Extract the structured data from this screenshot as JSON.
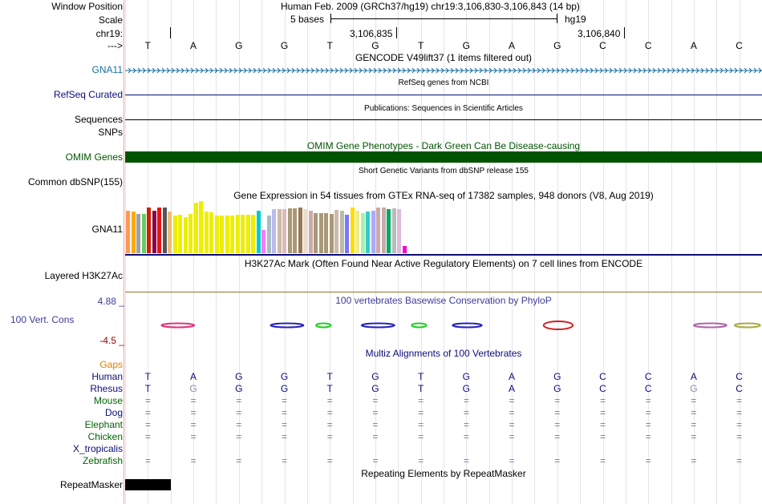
{
  "header": {
    "window_position_label": "Window Position",
    "title": "Human Feb. 2009 (GRCh37/hg19)   chr19:3,106,830-3,106,843 (14 bp)",
    "scale_label": "Scale",
    "scale_text": "5 bases",
    "scale_assembly": "hg19",
    "chrom_label": "chr19:",
    "coord1": "3,106,835",
    "coord2": "3,106,840",
    "strand_label": "--->"
  },
  "bases": [
    "T",
    "A",
    "G",
    "G",
    "T",
    "G",
    "T",
    "G",
    "A",
    "G",
    "C",
    "C",
    "A",
    "C"
  ],
  "tracks": {
    "gencode": {
      "title": "GENCODE V49lift37 (1 items filtered out)",
      "label": "GNA11",
      "color": "#1a6fa0"
    },
    "refseq": {
      "title": "RefSeq genes from NCBI",
      "label": "RefSeq Curated",
      "color": "#0c0c78"
    },
    "publications": {
      "title": "Publications: Sequences in Scientific Articles",
      "label1": "Sequences",
      "label2": "SNPs"
    },
    "omim": {
      "title": "OMIM Gene Phenotypes - Dark Green Can Be Disease-causing",
      "label": "OMIM Genes",
      "color": "#005400"
    },
    "dbsnp": {
      "title": "Short Genetic Variants from dbSNP release 155",
      "label": "Common dbSNP(155)"
    },
    "gtex": {
      "title": "Gene Expression in 54 tissues from GTEx RNA-seq of 17382 samples, 948 donors (V8, Aug 2019)",
      "label": "GNA11"
    },
    "h3k27ac": {
      "title": "H3K27Ac Mark (Often Found Near Active Regulatory Elements) on 7 cell lines from ENCODE",
      "label": "Layered H3K27Ac"
    },
    "phylop": {
      "title": "100 vertebrates Basewise Conservation by PhyloP",
      "label": "100 Vert. Cons",
      "max": "4.88 _",
      "min": "-4.5 _",
      "color": "#3c3c9a"
    },
    "multiz": {
      "title": "Multiz Alignments of 100 Vertebrates",
      "gaps_label": "Gaps"
    },
    "repeatmasker": {
      "title": "Repeating Elements by RepeatMasker",
      "label": "RepeatMasker"
    }
  },
  "species": [
    {
      "name": "Human",
      "color": "#0c0c78",
      "row": [
        "T",
        "A",
        "G",
        "G",
        "T",
        "G",
        "T",
        "G",
        "A",
        "G",
        "C",
        "C",
        "A",
        "C"
      ]
    },
    {
      "name": "Rhesus",
      "color": "#0c0c78",
      "row": [
        "T",
        "G",
        "G",
        "G",
        "T",
        "G",
        "T",
        "G",
        "A",
        "G",
        "C",
        "C",
        "G",
        "C"
      ]
    },
    {
      "name": "Mouse",
      "color": "#006400",
      "row": [
        "=",
        "=",
        "=",
        "=",
        "=",
        "=",
        "=",
        "=",
        "=",
        "=",
        "=",
        "=",
        "=",
        "="
      ]
    },
    {
      "name": "Dog",
      "color": "#0c0c78",
      "row": [
        "=",
        "=",
        "=",
        "=",
        "=",
        "=",
        "=",
        "=",
        "=",
        "=",
        "=",
        "=",
        "=",
        "="
      ]
    },
    {
      "name": "Elephant",
      "color": "#006400",
      "row": [
        "=",
        "=",
        "=",
        "=",
        "=",
        "=",
        "=",
        "=",
        "=",
        "=",
        "=",
        "=",
        "=",
        "="
      ]
    },
    {
      "name": "Chicken",
      "color": "#006400",
      "row": [
        "=",
        "=",
        "=",
        "=",
        "=",
        "=",
        "=",
        "=",
        "=",
        "=",
        "=",
        "=",
        "=",
        "="
      ]
    },
    {
      "name": "X_tropicalis",
      "color": "#0c0c78",
      "row": [
        "",
        "",
        "",
        "",
        "",
        "",
        "",
        "",
        "",
        "",
        "",
        "",
        "",
        ""
      ]
    },
    {
      "name": "Zebrafish",
      "color": "#006400",
      "row": [
        "=",
        "=",
        "=",
        "=",
        "=",
        "=",
        "=",
        "=",
        "=",
        "=",
        "=",
        "=",
        "=",
        "="
      ]
    }
  ],
  "gtex_bars": [
    {
      "v": 0.82,
      "c": "#ff9955"
    },
    {
      "v": 0.8,
      "c": "#ffaa00"
    },
    {
      "v": 0.75,
      "c": "#a1a1a1"
    },
    {
      "v": 0.75,
      "c": "#66cc66"
    },
    {
      "v": 0.88,
      "c": "#cc2200"
    },
    {
      "v": 0.82,
      "c": "#880044"
    },
    {
      "v": 0.87,
      "c": "#ee1111"
    },
    {
      "v": 0.87,
      "c": "#555555"
    },
    {
      "v": 0.8,
      "c": "#eebb77"
    },
    {
      "v": 0.72,
      "c": "#eeee00"
    },
    {
      "v": 0.74,
      "c": "#eeee00"
    },
    {
      "v": 0.7,
      "c": "#eeee00"
    },
    {
      "v": 0.75,
      "c": "#eeee00"
    },
    {
      "v": 0.97,
      "c": "#eeee00"
    },
    {
      "v": 1.0,
      "c": "#eeee00"
    },
    {
      "v": 0.8,
      "c": "#eeee00"
    },
    {
      "v": 0.78,
      "c": "#eeee00"
    },
    {
      "v": 0.72,
      "c": "#eeee00"
    },
    {
      "v": 0.72,
      "c": "#eeee00"
    },
    {
      "v": 0.72,
      "c": "#eeee00"
    },
    {
      "v": 0.72,
      "c": "#eeee00"
    },
    {
      "v": 0.74,
      "c": "#eeee00"
    },
    {
      "v": 0.74,
      "c": "#eeee00"
    },
    {
      "v": 0.74,
      "c": "#eeee00"
    },
    {
      "v": 0.74,
      "c": "#eeee00"
    },
    {
      "v": 0.82,
      "c": "#00cccc"
    },
    {
      "v": 0.44,
      "c": "#ff77ff"
    },
    {
      "v": 0.72,
      "c": "#aabbcc"
    },
    {
      "v": 0.84,
      "c": "#bbbbee"
    },
    {
      "v": 0.84,
      "c": "#ccbbaa"
    },
    {
      "v": 0.84,
      "c": "#ddbbbb"
    },
    {
      "v": 0.86,
      "c": "#aa9977"
    },
    {
      "v": 0.86,
      "c": "#aa9977"
    },
    {
      "v": 0.87,
      "c": "#997755"
    },
    {
      "v": 0.85,
      "c": "#eeddcc"
    },
    {
      "v": 0.82,
      "c": "#ccaaaa"
    },
    {
      "v": 0.77,
      "c": "#aa9977"
    },
    {
      "v": 0.77,
      "c": "#aa9977"
    },
    {
      "v": 0.77,
      "c": "#aa9977"
    },
    {
      "v": 0.76,
      "c": "#aa9977"
    },
    {
      "v": 0.83,
      "c": "#ccbbaa"
    },
    {
      "v": 0.82,
      "c": "#bbbbaa"
    },
    {
      "v": 0.74,
      "c": "#7777ff"
    },
    {
      "v": 0.88,
      "c": "#ffdd00"
    },
    {
      "v": 0.82,
      "c": "#eeee88"
    },
    {
      "v": 0.77,
      "c": "#aaeeaa"
    },
    {
      "v": 0.8,
      "c": "#33cccc"
    },
    {
      "v": 0.82,
      "c": "#aaaaff"
    },
    {
      "v": 0.88,
      "c": "#ccaaaa"
    },
    {
      "v": 0.88,
      "c": "#ccaaaa"
    },
    {
      "v": 0.84,
      "c": "#00aa66"
    },
    {
      "v": 0.86,
      "c": "#bbbbbb"
    },
    {
      "v": 0.84,
      "c": "#ddbbdd"
    },
    {
      "v": 0.14,
      "c": "#ff00cc"
    }
  ],
  "phylop_marks": [
    {
      "base": 0.8,
      "w": 0.9,
      "c": "#dd3377"
    },
    {
      "base": 3.2,
      "w": 0.9,
      "c": "#2222bb"
    },
    {
      "base": 4.2,
      "w": 0.4,
      "c": "#22cc22"
    },
    {
      "base": 5.2,
      "w": 0.9,
      "c": "#2222bb"
    },
    {
      "base": 6.3,
      "w": 0.4,
      "c": "#22cc22"
    },
    {
      "base": 7.2,
      "w": 0.8,
      "c": "#2222bb"
    },
    {
      "base": 9.2,
      "w": 0.8,
      "c": "#cc2222"
    },
    {
      "base": 12.5,
      "w": 0.9,
      "c": "#aa66aa"
    },
    {
      "base": 13.4,
      "w": 0.7,
      "c": "#aaaa44"
    }
  ]
}
